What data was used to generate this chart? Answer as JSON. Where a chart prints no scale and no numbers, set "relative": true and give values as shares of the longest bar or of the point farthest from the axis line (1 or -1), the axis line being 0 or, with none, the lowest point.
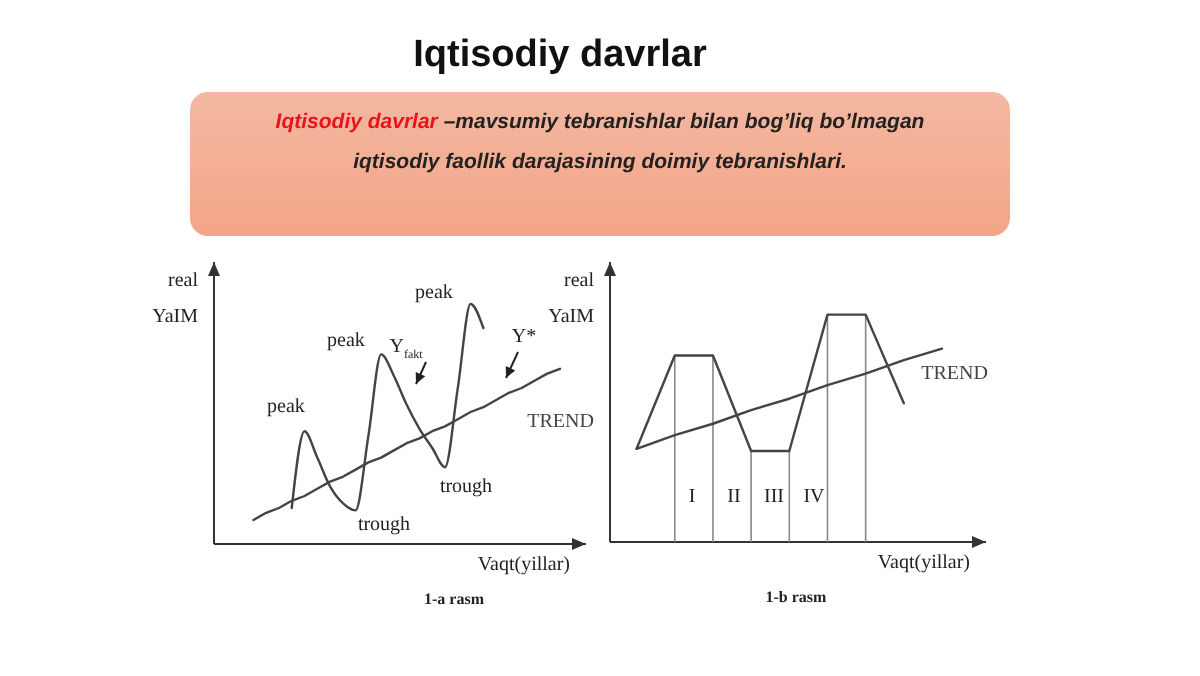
{
  "chart_data": [
    {
      "type": "line",
      "title": "Iqtisodiy davrlar",
      "subtitle": "Iqtisodiy davrlar –mavsumiy tebranishlar bilan bog’liq  bo’lmagan\niqtisodiy faollik darajasining doimiy  tebranishlari.",
      "relative": true,
      "ylabel": "real YaIM",
      "xlabel": "Vaqt(yillar)",
      "categories": [
        null,
        null,
        null,
        null,
        null,
        null,
        null,
        null,
        null,
        null,
        null,
        null,
        null,
        null,
        null,
        null,
        null,
        null,
        null,
        null,
        null,
        null,
        null,
        null,
        null
      ],
      "series": [
        {
          "color": "#444444",
          "values": [
            null,
            null,
            null,
            0.15,
            0.47,
            0.36,
            0.24,
            0.17,
            0.14,
            0.45,
            0.79,
            0.7,
            0.58,
            0.48,
            0.4,
            0.32,
            0.65,
            1,
            0.9,
            null,
            null,
            null,
            null,
            null,
            null
          ]
        },
        {
          "name": "TREND",
          "color": "#444444",
          "values": [
            0.1,
            0.13,
            0.15,
            0.18,
            0.2,
            0.23,
            0.26,
            0.28,
            0.31,
            0.34,
            0.36,
            0.39,
            0.42,
            0.44,
            0.47,
            0.49,
            0.52,
            0.55,
            0.57,
            0.6,
            0.63,
            0.65,
            0.68,
            0.71,
            0.73
          ]
        }
      ],
      "annotations": [
        "peak",
        "peak",
        "peak",
        "trough",
        "trough",
        "Y$_{fakt}$",
        "Y*",
        "1-a rasm"
      ]
    },
    {
      "type": "line",
      "relative": true,
      "ylabel": "real YaIM",
      "xlabel": "Vaqt(yillar)",
      "grid": "x",
      "categories": [
        null,
        null,
        null,
        null,
        null,
        null,
        null,
        null,
        null
      ],
      "series": [
        {
          "color": "#444444",
          "values": [
            0.41,
            0.82,
            0.82,
            0.4,
            0.4,
            1,
            1,
            0.61,
            null
          ]
        },
        {
          "name": "TREND",
          "color": "#444444",
          "values": [
            0.41,
            0.47,
            0.52,
            0.58,
            0.63,
            0.69,
            0.74,
            0.8,
            0.85
          ]
        }
      ],
      "annotations": [
        "I",
        "II",
        "III",
        "IV",
        "1-b rasm"
      ]
    }
  ]
}
